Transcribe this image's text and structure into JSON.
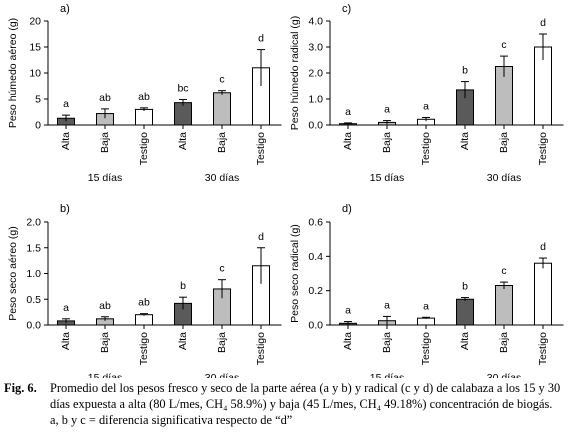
{
  "chart_data": [
    {
      "panel": "a)",
      "type": "bar",
      "ylabel": "Peso húmedo aéreo (g)",
      "ylim": [
        0,
        20
      ],
      "yticks": [
        "0",
        "5",
        "10",
        "15",
        "20"
      ],
      "categories": [
        "Alta",
        "Baja",
        "Testigo",
        "Alta",
        "Baja",
        "Testigo"
      ],
      "groups": [
        "15 días",
        "30 días"
      ],
      "values": [
        1.3,
        2.2,
        3.0,
        4.3,
        6.2,
        11.0
      ],
      "errors": [
        0.6,
        0.9,
        0.3,
        0.6,
        0.4,
        3.5
      ],
      "letters": [
        "a",
        "ab",
        "ab",
        "bc",
        "c",
        "d"
      ],
      "fills": [
        "#5a5a5a",
        "#bdbdbd",
        "#ffffff",
        "#5a5a5a",
        "#bdbdbd",
        "#ffffff"
      ]
    },
    {
      "panel": "c)",
      "type": "bar",
      "ylabel": "Peso húmedo radical (g)",
      "ylim": [
        0,
        4
      ],
      "yticks": [
        "0.0",
        "1.0",
        "2.0",
        "3.0",
        "4.0"
      ],
      "categories": [
        "Alta",
        "Baja",
        "Testigo",
        "Alta",
        "Baja",
        "Testigo"
      ],
      "groups": [
        "15 días",
        "30 días"
      ],
      "values": [
        0.05,
        0.1,
        0.22,
        1.35,
        2.25,
        3.0
      ],
      "errors": [
        0.03,
        0.07,
        0.07,
        0.32,
        0.4,
        0.5
      ],
      "letters": [
        "a",
        "a",
        "a",
        "b",
        "c",
        "d"
      ],
      "fills": [
        "#5a5a5a",
        "#bdbdbd",
        "#ffffff",
        "#5a5a5a",
        "#bdbdbd",
        "#ffffff"
      ]
    },
    {
      "panel": "b)",
      "type": "bar",
      "ylabel": "Peso seco aéreo (g)",
      "ylim": [
        0,
        2
      ],
      "yticks": [
        "0.0",
        "0.5",
        "1.0",
        "1.5",
        "2.0"
      ],
      "categories": [
        "Alta",
        "Baja",
        "Testigo",
        "Alta",
        "Baja",
        "Testigo"
      ],
      "groups": [
        "15 días",
        "30 días"
      ],
      "values": [
        0.08,
        0.12,
        0.2,
        0.42,
        0.7,
        1.15
      ],
      "errors": [
        0.04,
        0.04,
        0.02,
        0.12,
        0.18,
        0.35
      ],
      "letters": [
        "a",
        "ab",
        "ab",
        "b",
        "c",
        "d"
      ],
      "fills": [
        "#5a5a5a",
        "#bdbdbd",
        "#ffffff",
        "#5a5a5a",
        "#bdbdbd",
        "#ffffff"
      ]
    },
    {
      "panel": "d)",
      "type": "bar",
      "ylabel": "Peso seco radical (g)",
      "ylim": [
        0,
        0.6
      ],
      "yticks": [
        "0.0",
        "0.2",
        "0.4",
        "0.6"
      ],
      "categories": [
        "Alta",
        "Baja",
        "Testigo",
        "Alta",
        "Baja",
        "Testigo"
      ],
      "groups": [
        "15 días",
        "30 días"
      ],
      "values": [
        0.01,
        0.025,
        0.04,
        0.15,
        0.23,
        0.36
      ],
      "errors": [
        0.01,
        0.025,
        0.005,
        0.01,
        0.02,
        0.03
      ],
      "letters": [
        "a",
        "a",
        "a",
        "b",
        "c",
        "d"
      ],
      "fills": [
        "#5a5a5a",
        "#bdbdbd",
        "#ffffff",
        "#5a5a5a",
        "#bdbdbd",
        "#ffffff"
      ]
    }
  ],
  "caption": {
    "label": "Fig. 6.",
    "text": "Promedio del los pesos fresco y seco de la parte aérea (a y b) y radical (c y d) de calabaza a los 15 y 30 días expuesta a alta (80 L/mes, CH₄ 58.9%) y baja (45 L/mes, CH₄ 49.18%) concentración de biogás. a, b y c = diferencia significativa respecto de “d”"
  }
}
